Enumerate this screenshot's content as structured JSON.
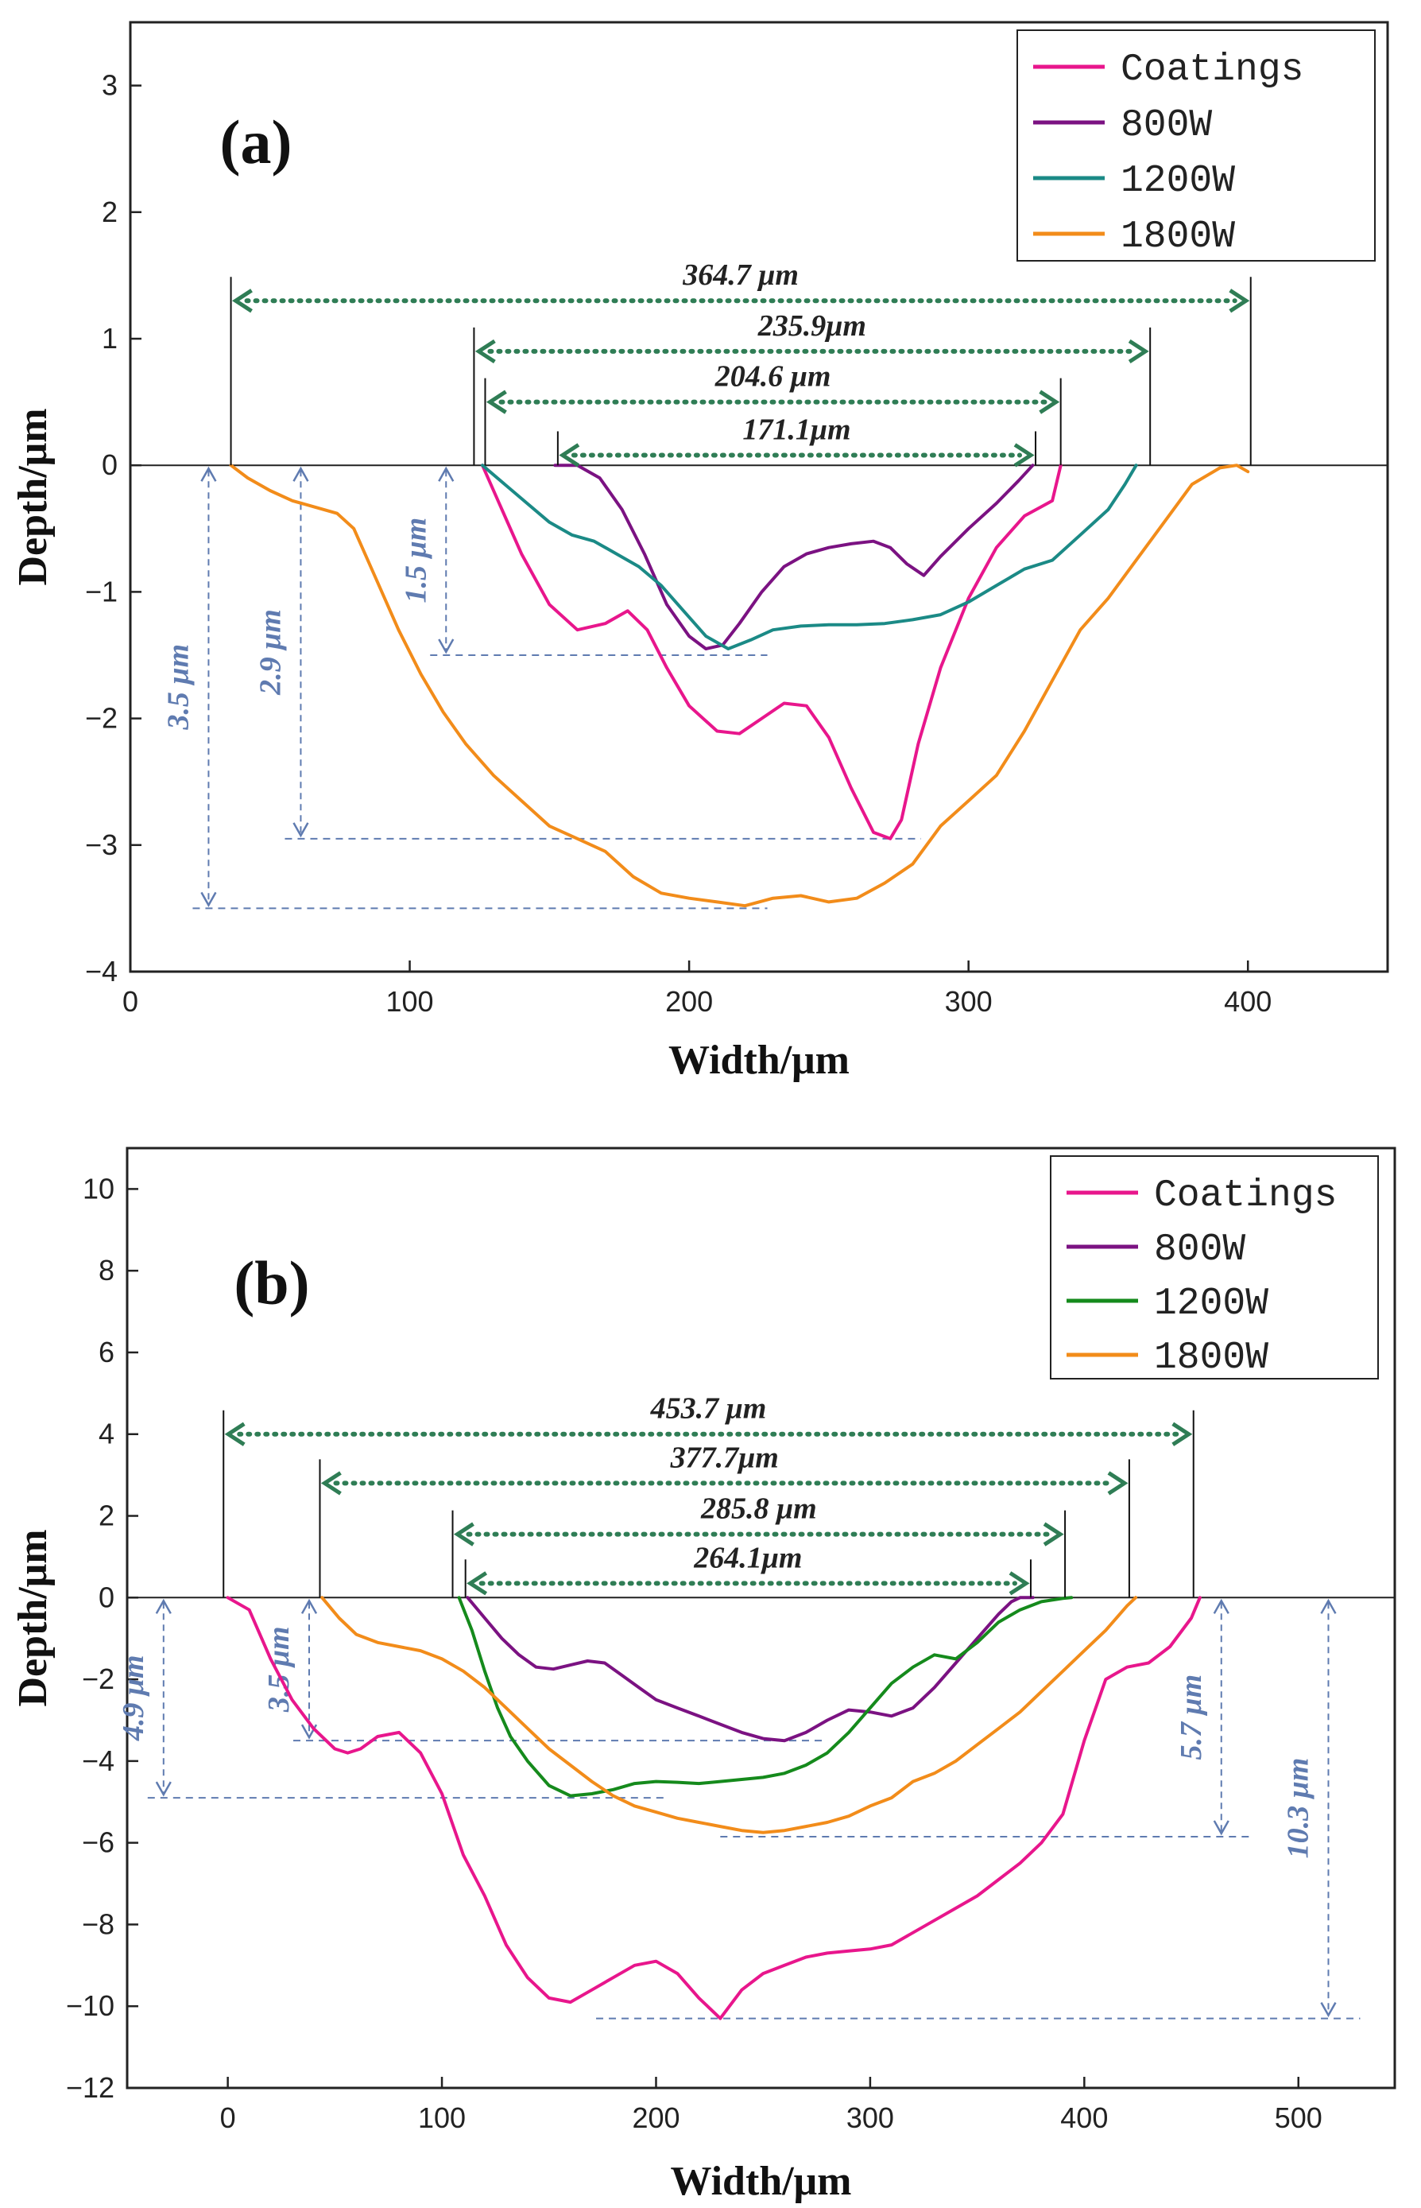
{
  "chart_data": [
    {
      "type": "line",
      "panel_label": "(a)",
      "xlabel": "Width/μm",
      "ylabel": "Depth/μm",
      "xlim": [
        0,
        450
      ],
      "ylim": [
        -4,
        3.5
      ],
      "xticks": [
        0,
        100,
        200,
        300,
        400
      ],
      "xtick_labels": [
        "0",
        "100",
        "200",
        "300",
        "400"
      ],
      "yticks": [
        -4,
        -3,
        -2,
        -1,
        0,
        1,
        2,
        3
      ],
      "ytick_labels": [
        "−4",
        "−3",
        "−2",
        "−1",
        "0",
        "1",
        "2",
        "3"
      ],
      "legend_position": "top-right",
      "series": [
        {
          "name": "Coatings",
          "color": "#e8168c",
          "x": [
            126,
            132,
            140,
            150,
            160,
            170,
            178,
            185,
            192,
            200,
            210,
            218,
            226,
            234,
            242,
            250,
            258,
            266,
            272,
            276,
            282,
            290,
            300,
            310,
            320,
            330,
            333
          ],
          "y": [
            0,
            -0.3,
            -0.7,
            -1.1,
            -1.3,
            -1.25,
            -1.15,
            -1.3,
            -1.6,
            -1.9,
            -2.1,
            -2.12,
            -2.0,
            -1.88,
            -1.9,
            -2.15,
            -2.55,
            -2.9,
            -2.95,
            -2.8,
            -2.2,
            -1.6,
            -1.05,
            -0.65,
            -0.4,
            -0.28,
            0
          ]
        },
        {
          "name": "800W",
          "color": "#7b1282",
          "x": [
            152,
            160,
            168,
            176,
            184,
            192,
            200,
            206,
            212,
            218,
            226,
            234,
            242,
            250,
            258,
            266,
            272,
            278,
            284,
            290,
            300,
            310,
            318,
            323
          ],
          "y": [
            0,
            0,
            -0.1,
            -0.35,
            -0.7,
            -1.1,
            -1.35,
            -1.45,
            -1.42,
            -1.25,
            -1.0,
            -0.8,
            -0.7,
            -0.65,
            -0.62,
            -0.6,
            -0.65,
            -0.78,
            -0.87,
            -0.72,
            -0.5,
            -0.3,
            -0.12,
            0
          ]
        },
        {
          "name": "1200W",
          "color": "#1b8a86",
          "x": [
            126,
            134,
            142,
            150,
            158,
            166,
            174,
            182,
            190,
            198,
            206,
            214,
            222,
            230,
            240,
            250,
            260,
            270,
            280,
            290,
            300,
            310,
            320,
            330,
            340,
            350,
            356,
            360
          ],
          "y": [
            0,
            -0.15,
            -0.3,
            -0.45,
            -0.55,
            -0.6,
            -0.7,
            -0.8,
            -0.95,
            -1.15,
            -1.35,
            -1.45,
            -1.38,
            -1.3,
            -1.27,
            -1.26,
            -1.26,
            -1.25,
            -1.22,
            -1.18,
            -1.08,
            -0.95,
            -0.82,
            -0.75,
            -0.55,
            -0.35,
            -0.15,
            0
          ]
        },
        {
          "name": "1800W",
          "color": "#f28c1a",
          "x": [
            36,
            42,
            50,
            58,
            66,
            74,
            80,
            88,
            96,
            104,
            112,
            120,
            130,
            140,
            150,
            160,
            170,
            180,
            190,
            200,
            210,
            220,
            230,
            240,
            250,
            260,
            270,
            280,
            290,
            300,
            310,
            320,
            330,
            340,
            350,
            360,
            370,
            380,
            390,
            396,
            400
          ],
          "y": [
            0,
            -0.1,
            -0.2,
            -0.28,
            -0.33,
            -0.38,
            -0.5,
            -0.9,
            -1.3,
            -1.65,
            -1.95,
            -2.2,
            -2.45,
            -2.65,
            -2.85,
            -2.95,
            -3.05,
            -3.25,
            -3.38,
            -3.42,
            -3.45,
            -3.48,
            -3.42,
            -3.4,
            -3.45,
            -3.42,
            -3.3,
            -3.15,
            -2.85,
            -2.65,
            -2.45,
            -2.1,
            -1.7,
            -1.3,
            -1.05,
            -0.75,
            -0.45,
            -0.15,
            -0.02,
            0,
            -0.05
          ]
        }
      ],
      "width_annotations": [
        {
          "label": "364.7 μm",
          "x_start": 36,
          "x_end": 401,
          "y": 1.3
        },
        {
          "label": "235.9μm",
          "x_start": 123,
          "x_end": 365,
          "y": 0.9
        },
        {
          "label": "204.6 μm",
          "x_start": 127,
          "x_end": 333,
          "y": 0.5
        },
        {
          "label": "171.1μm",
          "x_start": 153,
          "x_end": 324,
          "y": 0.08
        }
      ],
      "depth_annotations": [
        {
          "label": "3.5 μm",
          "x": 28,
          "y_top": 0,
          "y_bottom": -3.5,
          "guide_x_end": 228
        },
        {
          "label": "2.9 μm",
          "x": 61,
          "y_top": 0,
          "y_bottom": -2.95,
          "guide_x_end": 283
        },
        {
          "label": "1.5 μm",
          "x": 113,
          "y_top": 0,
          "y_bottom": -1.5,
          "guide_x_end": 228
        }
      ]
    },
    {
      "type": "line",
      "panel_label": "(b)",
      "xlabel": "Width/μm",
      "ylabel": "Depth/μm",
      "xlim": [
        -47,
        545
      ],
      "ylim": [
        -12,
        11
      ],
      "xticks": [
        0,
        100,
        200,
        300,
        400,
        500
      ],
      "xtick_labels": [
        "0",
        "100",
        "200",
        "300",
        "400",
        "500"
      ],
      "yticks": [
        -12,
        -10,
        -8,
        -6,
        -4,
        -2,
        0,
        2,
        4,
        6,
        8,
        10
      ],
      "ytick_labels": [
        "−12",
        "−10",
        "−8",
        "−6",
        "−4",
        "−2",
        "0",
        "2",
        "4",
        "6",
        "8",
        "10"
      ],
      "legend_position": "top-right",
      "series": [
        {
          "name": "Coatings",
          "color": "#e8168c",
          "x": [
            0,
            10,
            20,
            30,
            40,
            50,
            56,
            62,
            70,
            80,
            90,
            100,
            110,
            120,
            130,
            140,
            150,
            160,
            170,
            180,
            190,
            200,
            210,
            220,
            230,
            240,
            250,
            260,
            270,
            280,
            290,
            300,
            310,
            320,
            330,
            340,
            350,
            360,
            370,
            380,
            390,
            400,
            410,
            420,
            430,
            440,
            450,
            454
          ],
          "y": [
            0,
            -0.3,
            -1.5,
            -2.5,
            -3.2,
            -3.7,
            -3.8,
            -3.7,
            -3.4,
            -3.3,
            -3.8,
            -4.8,
            -6.3,
            -7.3,
            -8.5,
            -9.3,
            -9.8,
            -9.9,
            -9.6,
            -9.3,
            -9.0,
            -8.9,
            -9.2,
            -9.8,
            -10.3,
            -9.6,
            -9.2,
            -9.0,
            -8.8,
            -8.7,
            -8.65,
            -8.6,
            -8.5,
            -8.2,
            -7.9,
            -7.6,
            -7.3,
            -6.9,
            -6.5,
            -6.0,
            -5.3,
            -3.5,
            -2.0,
            -1.7,
            -1.6,
            -1.2,
            -0.5,
            0
          ]
        },
        {
          "name": "800W",
          "color": "#7b1282",
          "x": [
            112,
            120,
            128,
            136,
            144,
            152,
            160,
            168,
            176,
            184,
            192,
            200,
            210,
            220,
            230,
            240,
            250,
            260,
            270,
            280,
            290,
            300,
            310,
            320,
            330,
            340,
            350,
            360,
            366,
            370,
            376
          ],
          "y": [
            0,
            -0.5,
            -1.0,
            -1.4,
            -1.7,
            -1.75,
            -1.65,
            -1.55,
            -1.6,
            -1.9,
            -2.2,
            -2.5,
            -2.7,
            -2.9,
            -3.1,
            -3.3,
            -3.45,
            -3.5,
            -3.3,
            -3.0,
            -2.75,
            -2.8,
            -2.9,
            -2.7,
            -2.2,
            -1.6,
            -1.0,
            -0.4,
            -0.1,
            0,
            0
          ]
        },
        {
          "name": "1200W",
          "color": "#158a1c",
          "x": [
            108,
            114,
            120,
            126,
            132,
            140,
            150,
            160,
            170,
            180,
            190,
            200,
            210,
            220,
            230,
            240,
            250,
            260,
            270,
            280,
            290,
            300,
            310,
            320,
            330,
            340,
            350,
            360,
            370,
            380,
            390,
            394
          ],
          "y": [
            0,
            -0.8,
            -1.8,
            -2.7,
            -3.4,
            -4.0,
            -4.6,
            -4.85,
            -4.8,
            -4.7,
            -4.55,
            -4.5,
            -4.52,
            -4.55,
            -4.5,
            -4.45,
            -4.4,
            -4.3,
            -4.1,
            -3.8,
            -3.3,
            -2.7,
            -2.1,
            -1.7,
            -1.4,
            -1.5,
            -1.1,
            -0.6,
            -0.3,
            -0.1,
            -0.02,
            0
          ]
        },
        {
          "name": "1800W",
          "color": "#f28c1a",
          "x": [
            44,
            52,
            60,
            70,
            80,
            90,
            100,
            110,
            120,
            130,
            140,
            150,
            160,
            170,
            180,
            190,
            200,
            210,
            220,
            230,
            240,
            250,
            260,
            270,
            280,
            290,
            300,
            310,
            320,
            330,
            340,
            350,
            360,
            370,
            380,
            390,
            400,
            410,
            420,
            424
          ],
          "y": [
            0,
            -0.5,
            -0.9,
            -1.1,
            -1.2,
            -1.3,
            -1.5,
            -1.8,
            -2.2,
            -2.7,
            -3.2,
            -3.7,
            -4.1,
            -4.5,
            -4.85,
            -5.1,
            -5.25,
            -5.4,
            -5.5,
            -5.6,
            -5.7,
            -5.75,
            -5.7,
            -5.6,
            -5.5,
            -5.35,
            -5.1,
            -4.9,
            -4.5,
            -4.3,
            -4.0,
            -3.6,
            -3.2,
            -2.8,
            -2.3,
            -1.8,
            -1.3,
            -0.8,
            -0.2,
            0
          ]
        }
      ],
      "width_annotations": [
        {
          "label": "453.7 μm",
          "x_start": -2,
          "x_end": 451,
          "y": 4.0
        },
        {
          "label": "377.7μm",
          "x_start": 43,
          "x_end": 421,
          "y": 2.8
        },
        {
          "label": "285.8 μm",
          "x_start": 105,
          "x_end": 391,
          "y": 1.55
        },
        {
          "label": "264.1μm",
          "x_start": 111,
          "x_end": 375,
          "y": 0.35
        }
      ],
      "depth_annotations": [
        {
          "label": "4.9 μm",
          "x": -30,
          "y_top": 0,
          "y_bottom": -4.9,
          "guide_x_end": 205
        },
        {
          "label": "3.5 μm",
          "x": 38,
          "y_top": 0,
          "y_bottom": -3.5,
          "guide_x_end": 280
        },
        {
          "label": "5.7 μm",
          "x": 464,
          "y_top": 0,
          "y_bottom": -5.85,
          "guide_x_start": 230
        },
        {
          "label": "10.3 μm",
          "x": 514,
          "y_top": 0,
          "y_bottom": -10.3,
          "guide_x_start": 172
        }
      ]
    }
  ]
}
